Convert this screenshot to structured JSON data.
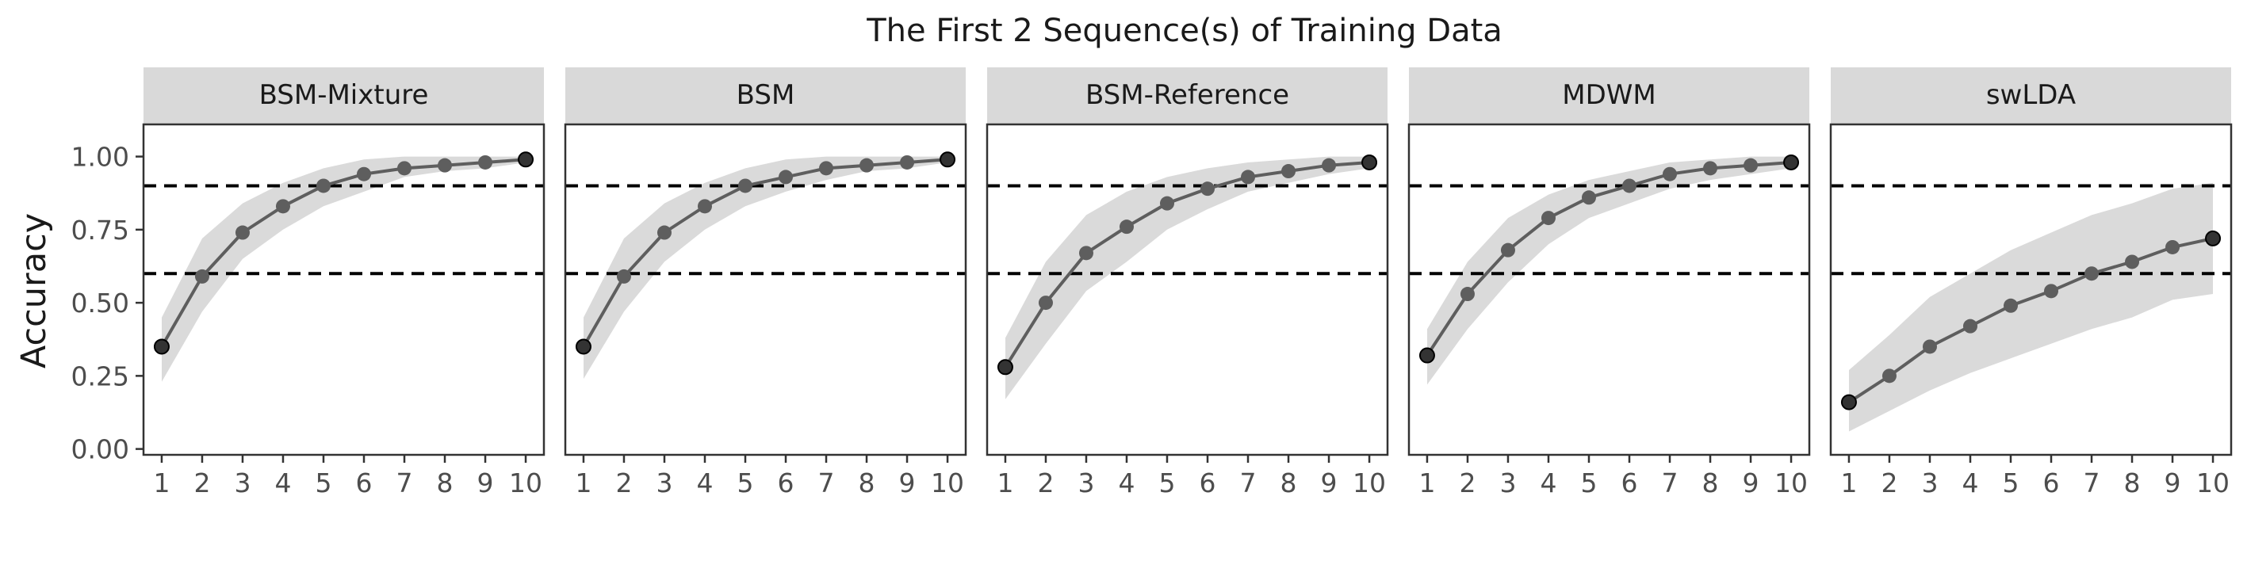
{
  "title": "The First 2 Sequence(s) of Training Data",
  "ylabel": "Accuracy",
  "colors": {
    "line": "#5e5e5e",
    "point": "#5e5e5e",
    "point_edge": "#000000",
    "band": "#dadada",
    "strip": "#d9d9d9",
    "hline": "#000000",
    "axis_text": "#4d4d4d"
  },
  "chart_data": {
    "type": "line",
    "facets": [
      "BSM-Mixture",
      "BSM",
      "BSM-Reference",
      "MDWM",
      "swLDA"
    ],
    "x": [
      1,
      2,
      3,
      4,
      5,
      6,
      7,
      8,
      9,
      10
    ],
    "x_ticks": [
      "1",
      "2",
      "3",
      "4",
      "5",
      "6",
      "7",
      "8",
      "9",
      "10"
    ],
    "y_ticks": [
      "0.00",
      "0.25",
      "0.50",
      "0.75",
      "1.00"
    ],
    "ylim": [
      -0.02,
      1.11
    ],
    "xlim": [
      0.55,
      10.45
    ],
    "hlines": [
      0.9,
      0.6
    ],
    "hline_style": "dashed",
    "series": [
      {
        "name": "BSM-Mixture",
        "values": [
          0.35,
          0.59,
          0.74,
          0.83,
          0.9,
          0.94,
          0.96,
          0.97,
          0.98,
          0.99
        ],
        "lower": [
          0.23,
          0.47,
          0.65,
          0.75,
          0.83,
          0.88,
          0.93,
          0.95,
          0.96,
          0.98
        ],
        "upper": [
          0.45,
          0.72,
          0.84,
          0.91,
          0.96,
          0.99,
          1.0,
          1.0,
          1.0,
          1.0
        ]
      },
      {
        "name": "BSM",
        "values": [
          0.35,
          0.59,
          0.74,
          0.83,
          0.9,
          0.93,
          0.96,
          0.97,
          0.98,
          0.99
        ],
        "lower": [
          0.24,
          0.47,
          0.64,
          0.75,
          0.83,
          0.88,
          0.92,
          0.95,
          0.96,
          0.98
        ],
        "upper": [
          0.45,
          0.72,
          0.84,
          0.91,
          0.96,
          0.99,
          1.0,
          1.0,
          1.0,
          1.0
        ]
      },
      {
        "name": "BSM-Reference",
        "values": [
          0.28,
          0.5,
          0.67,
          0.76,
          0.84,
          0.89,
          0.93,
          0.95,
          0.97,
          0.98
        ],
        "lower": [
          0.17,
          0.36,
          0.54,
          0.64,
          0.75,
          0.82,
          0.88,
          0.91,
          0.94,
          0.96
        ],
        "upper": [
          0.38,
          0.64,
          0.8,
          0.88,
          0.93,
          0.96,
          0.98,
          0.99,
          1.0,
          1.0
        ]
      },
      {
        "name": "MDWM",
        "values": [
          0.32,
          0.53,
          0.68,
          0.79,
          0.86,
          0.9,
          0.94,
          0.96,
          0.97,
          0.98
        ],
        "lower": [
          0.22,
          0.41,
          0.57,
          0.7,
          0.79,
          0.84,
          0.89,
          0.92,
          0.94,
          0.96
        ],
        "upper": [
          0.41,
          0.64,
          0.79,
          0.87,
          0.92,
          0.95,
          0.98,
          0.99,
          1.0,
          1.0
        ]
      },
      {
        "name": "swLDA",
        "values": [
          0.16,
          0.25,
          0.35,
          0.42,
          0.49,
          0.54,
          0.6,
          0.64,
          0.69,
          0.72
        ],
        "lower": [
          0.06,
          0.13,
          0.2,
          0.26,
          0.31,
          0.36,
          0.41,
          0.45,
          0.51,
          0.53
        ],
        "upper": [
          0.27,
          0.39,
          0.52,
          0.6,
          0.68,
          0.74,
          0.8,
          0.84,
          0.89,
          0.91
        ]
      }
    ],
    "grid": false,
    "legend": "none"
  }
}
